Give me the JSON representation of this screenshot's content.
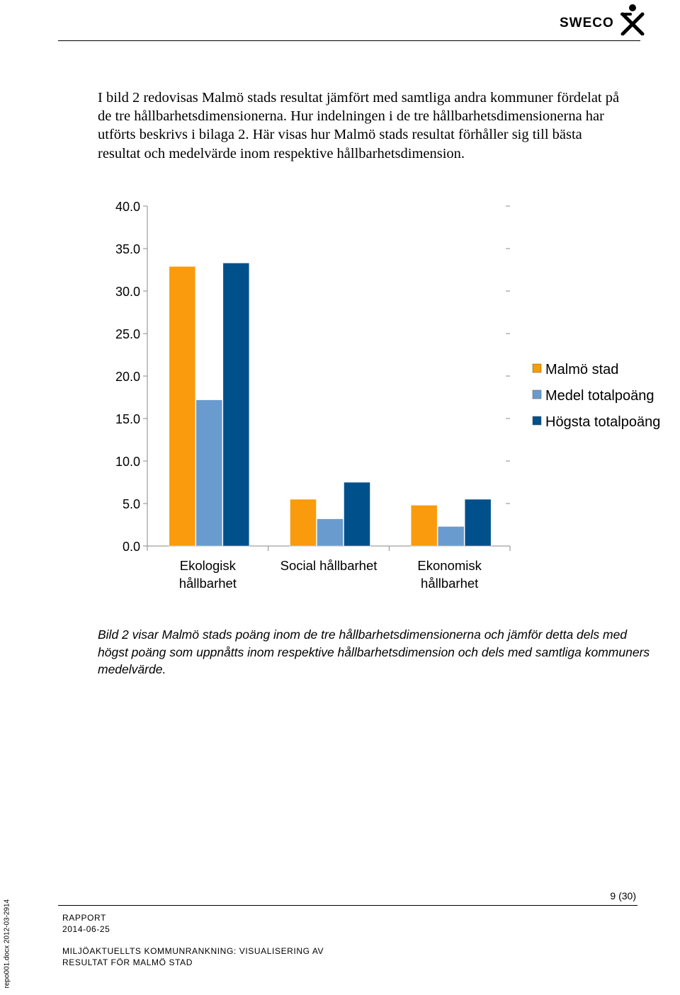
{
  "header": {
    "logo_text": "SWECO"
  },
  "intro_text": "I bild 2 redovisas Malmö stads resultat jämfört med samtliga andra kommuner fördelat på de tre hållbarhetsdimensionerna. Hur indelningen i de tre hållbarhetsdimensionerna har utförts beskrivs i bilaga 2. Här visas hur Malmö stads resultat förhåller sig till bästa resultat och medelvärde inom respektive hållbarhetsdimension.",
  "chart_data": {
    "type": "bar",
    "title": "",
    "xlabel": "",
    "ylabel": "",
    "ylim": [
      0,
      40
    ],
    "yticks": [
      "40.0",
      "35.0",
      "30.0",
      "25.0",
      "20.0",
      "15.0",
      "10.0",
      "5.0",
      "0.0"
    ],
    "grid": false,
    "legend_position": "right",
    "categories": [
      [
        "Ekologisk",
        "hållbarhet"
      ],
      [
        "Social hållbarhet"
      ],
      [
        "Ekonomisk",
        "hållbarhet"
      ]
    ],
    "series": [
      {
        "name": "Malmö stad",
        "color": "#F99B0C",
        "values": [
          32.9,
          5.5,
          4.8
        ]
      },
      {
        "name": "Medel totalpoäng",
        "color": "#699BCE",
        "values": [
          17.2,
          3.2,
          2.3
        ]
      },
      {
        "name": "Högsta totalpoäng",
        "color": "#00508C",
        "values": [
          33.3,
          7.5,
          5.5
        ]
      }
    ]
  },
  "caption": "Bild 2 visar Malmö stads poäng inom de tre hållbarhetsdimensionerna och jämför detta dels med högst poäng som uppnåtts inom respektive hållbarhetsdimension och dels med samtliga kommuners medelvärde.",
  "footer": {
    "page_number": "9 (30)",
    "doc_type": "RAPPORT",
    "date": "2014-06-25",
    "title_line1": "MILJÖAKTUELLTS KOMMUNRANKNING: VISUALISERING AV",
    "title_line2": "RESULTAT FÖR MALMÖ STAD",
    "template_note": "repo001.docx 2012-03-2914"
  }
}
